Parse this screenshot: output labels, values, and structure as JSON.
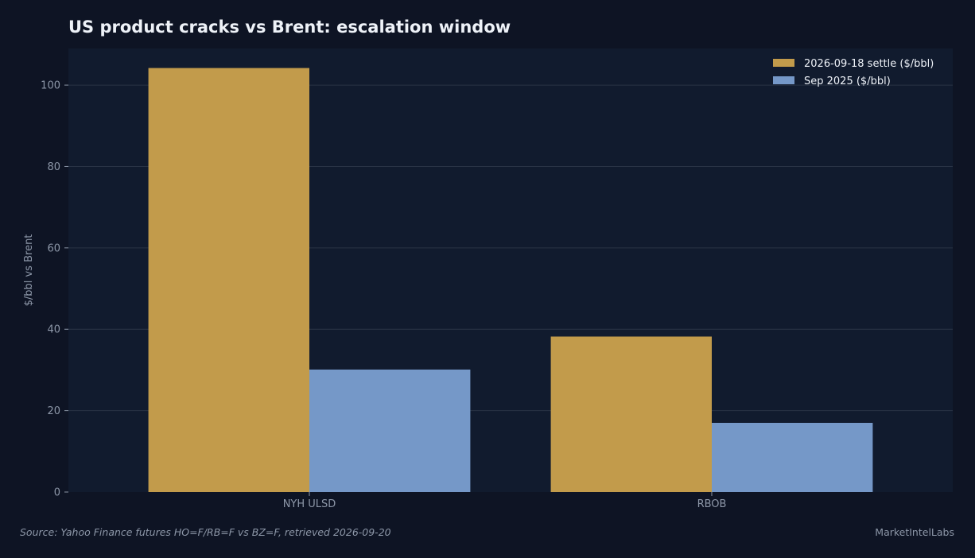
{
  "colors": {
    "page_bg": "#0e1424",
    "plot_bg": "#111b2e",
    "grid": "#2a3446",
    "text": "#eef2f8",
    "muted": "#8d97a8",
    "series_1": "#c29b4b",
    "series_2": "#7598c8"
  },
  "chart_data": {
    "type": "bar",
    "title": "US product cracks vs Brent: escalation window",
    "xlabel": "",
    "ylabel": "$/bbl vs Brent",
    "categories": [
      "NYH ULSD",
      "RBOB"
    ],
    "series": [
      {
        "name": "2026-09-18 settle ($/bbl)",
        "values": [
          104.2,
          38.2
        ]
      },
      {
        "name": "Sep 2025 ($/bbl)",
        "values": [
          30.1,
          17.0
        ]
      }
    ],
    "ylim": [
      0,
      109
    ],
    "yticks": [
      0,
      20,
      40,
      60,
      80,
      100
    ],
    "grid": true,
    "legend_position": "top-right"
  },
  "footer": {
    "source": "Source: Yahoo Finance futures HO=F/RB=F vs BZ=F, retrieved 2026-09-20",
    "brand": "MarketIntelLabs"
  }
}
